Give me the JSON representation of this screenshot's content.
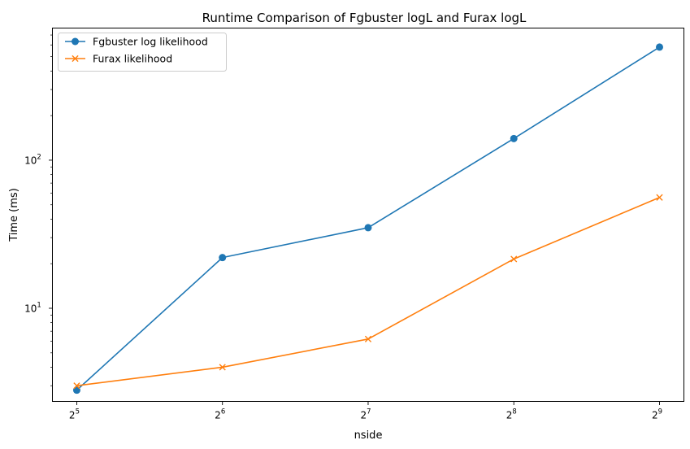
{
  "chart_data": {
    "type": "line",
    "title": "Runtime Comparison of Fgbuster logL and Furax logL",
    "xlabel": "nside",
    "ylabel": "Time (ms)",
    "x": [
      32,
      64,
      128,
      256,
      512
    ],
    "x_scale": "log2",
    "y_scale": "log10",
    "xlim": [
      28.5,
      575
    ],
    "ylim": [
      2.35,
      780
    ],
    "x_ticks": [
      {
        "value": 32,
        "base": "2",
        "exp": "5"
      },
      {
        "value": 64,
        "base": "2",
        "exp": "6"
      },
      {
        "value": 128,
        "base": "2",
        "exp": "7"
      },
      {
        "value": 256,
        "base": "2",
        "exp": "8"
      },
      {
        "value": 512,
        "base": "2",
        "exp": "9"
      }
    ],
    "y_ticks": [
      {
        "value": 10,
        "base": "10",
        "exp": "1"
      },
      {
        "value": 100,
        "base": "10",
        "exp": "2"
      }
    ],
    "grid": false,
    "legend_position": "top-left",
    "series": [
      {
        "name": "Fgbuster log likelihood",
        "color": "#1f77b4",
        "marker": "circle",
        "values": [
          2.8,
          22,
          35,
          140,
          580
        ]
      },
      {
        "name": "Furax likelihood",
        "color": "#ff7f0e",
        "marker": "x",
        "values": [
          3.0,
          4.0,
          6.2,
          21.5,
          56
        ]
      }
    ]
  }
}
